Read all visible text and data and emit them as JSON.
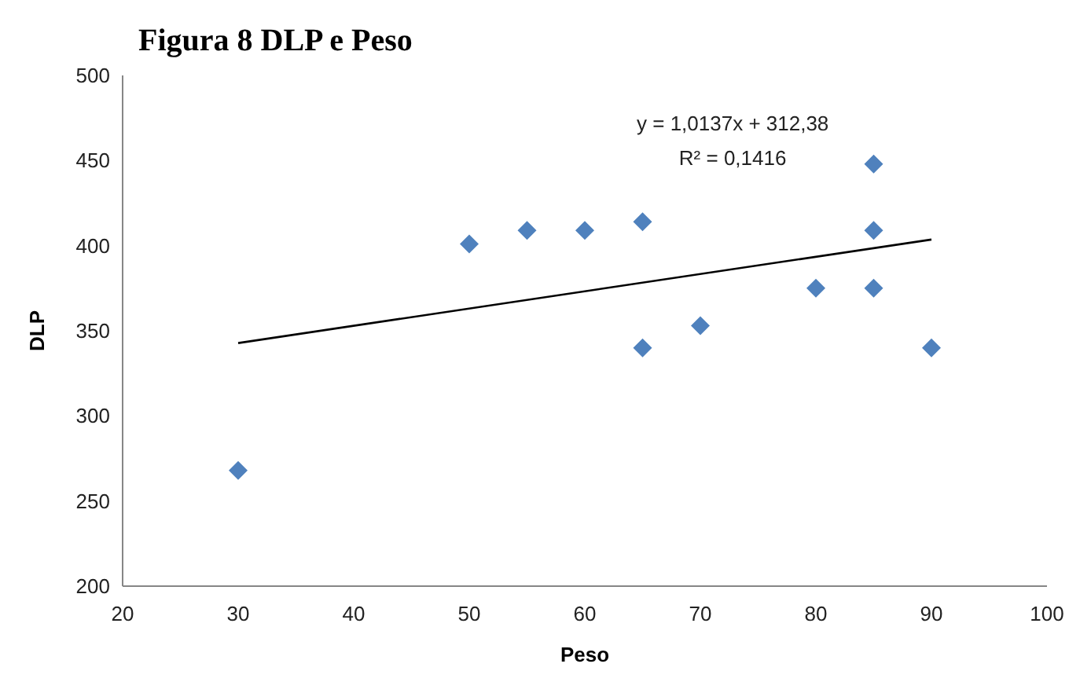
{
  "chart_data": {
    "type": "scatter",
    "title": "Figura 8 DLP e Peso",
    "xlabel": "Peso",
    "ylabel": "DLP",
    "x": [
      30,
      50,
      55,
      60,
      65,
      65,
      70,
      80,
      85,
      85,
      85,
      90
    ],
    "series": [
      {
        "color": "#4f81bd",
        "marker": "diamond",
        "values": [
          268,
          401,
          409,
          409,
          414,
          340,
          353,
          375,
          375,
          409,
          448,
          340
        ]
      },
      {
        "type": "line",
        "color": "#000000",
        "x": [
          30,
          90
        ],
        "values": [
          342.8,
          403.6
        ],
        "line_style": "solid",
        "marker": "none"
      }
    ],
    "annotations": [
      "y = 1,0137x + 312,38",
      "R² = 0,1416"
    ],
    "xlim": [
      20,
      100
    ],
    "xticks": [
      20,
      30,
      40,
      50,
      60,
      70,
      80,
      90,
      100
    ],
    "ylim": [
      200,
      500
    ],
    "yticks": [
      200,
      250,
      300,
      350,
      400,
      450,
      500
    ],
    "grid": false
  }
}
